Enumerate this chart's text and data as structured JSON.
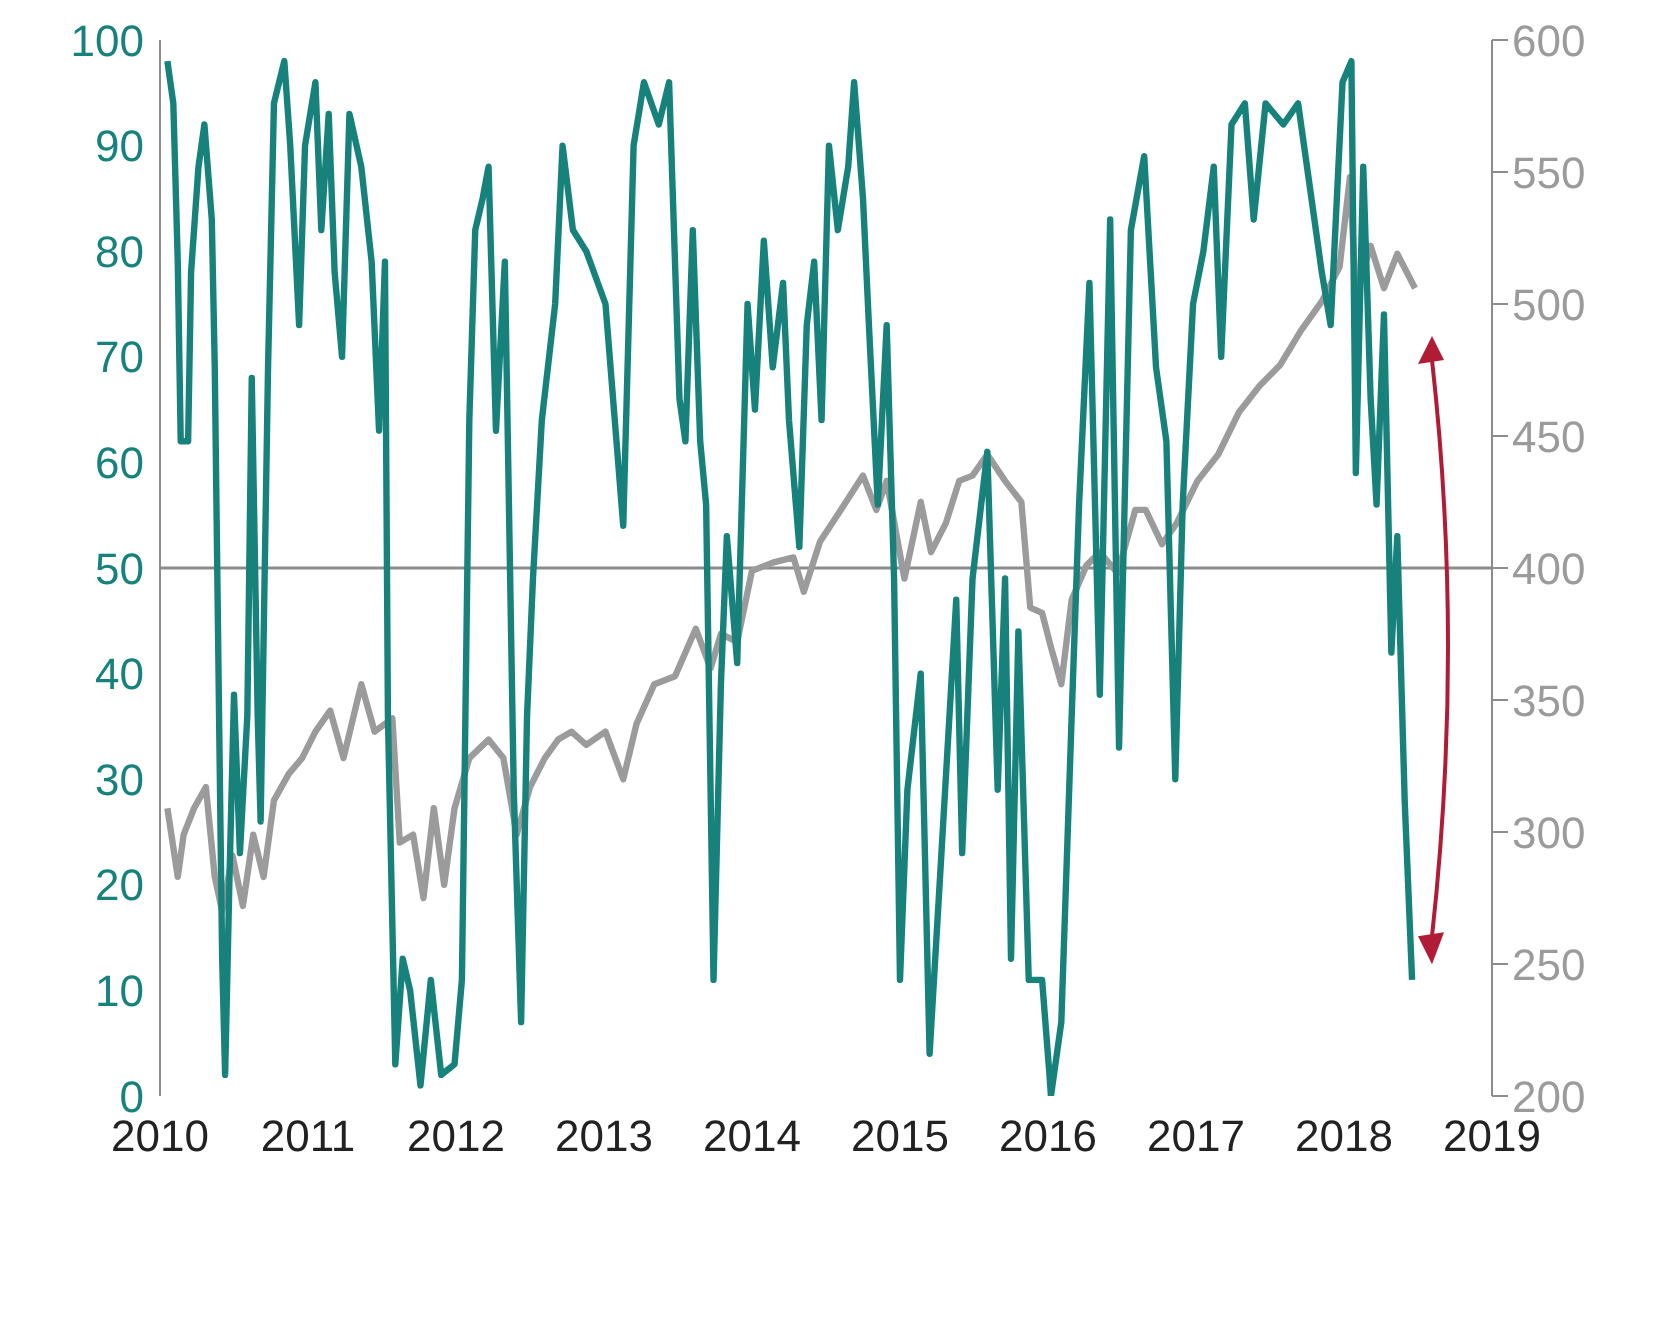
{
  "chart_data": {
    "type": "line",
    "xlim": [
      2010,
      2019
    ],
    "xticks": [
      2010,
      2011,
      2012,
      2013,
      2014,
      2015,
      2016,
      2017,
      2018,
      2019
    ],
    "ylim": [
      0,
      100
    ],
    "yticks": [
      0,
      10,
      20,
      30,
      40,
      50,
      60,
      70,
      80,
      90,
      100
    ],
    "y2lim": [
      200,
      600
    ],
    "y2ticks": [
      200,
      250,
      300,
      350,
      400,
      450,
      500,
      550,
      600
    ],
    "grid": false,
    "legend": false,
    "marker": "none",
    "line_style": "solid",
    "ref_lines": [
      {
        "axis": "y",
        "value": 50,
        "color": "#8c8c8c"
      }
    ],
    "series": [
      {
        "color": "#17827c",
        "x": [
          2010.05,
          2010.09,
          2010.12,
          2010.14,
          2010.19,
          2010.21,
          2010.26,
          2010.3,
          2010.35,
          2010.37,
          2010.4,
          2010.42,
          2010.44,
          2010.47,
          2010.5,
          2010.54,
          2010.59,
          2010.62,
          2010.66,
          2010.68,
          2010.73,
          2010.77,
          2010.84,
          2010.88,
          2010.94,
          2010.98,
          2011.05,
          2011.09,
          2011.14,
          2011.18,
          2011.23,
          2011.28,
          2011.36,
          2011.43,
          2011.48,
          2011.52,
          2011.54,
          2011.59,
          2011.64,
          2011.69,
          2011.76,
          2011.83,
          2011.9,
          2011.99,
          2012.04,
          2012.09,
          2012.13,
          2012.18,
          2012.22,
          2012.27,
          2012.33,
          2012.39,
          2012.44,
          2012.48,
          2012.52,
          2012.58,
          2012.67,
          2012.72,
          2012.79,
          2012.88,
          2013.01,
          2013.13,
          2013.2,
          2013.27,
          2013.37,
          2013.44,
          2013.51,
          2013.55,
          2013.6,
          2013.65,
          2013.69,
          2013.74,
          2013.79,
          2013.83,
          2013.9,
          2013.97,
          2014.02,
          2014.08,
          2014.14,
          2014.21,
          2014.25,
          2014.32,
          2014.37,
          2014.42,
          2014.47,
          2014.52,
          2014.58,
          2014.65,
          2014.69,
          2014.75,
          2014.79,
          2014.85,
          2014.91,
          2014.96,
          2015.0,
          2015.05,
          2015.14,
          2015.2,
          2015.28,
          2015.38,
          2015.42,
          2015.49,
          2015.59,
          2015.66,
          2015.71,
          2015.75,
          2015.8,
          2015.87,
          2015.96,
          2016.01,
          2016.02,
          2016.09,
          2016.16,
          2016.21,
          2016.28,
          2016.35,
          2016.42,
          2016.48,
          2016.56,
          2016.65,
          2016.73,
          2016.8,
          2016.86,
          2016.91,
          2016.98,
          2017.05,
          2017.12,
          2017.17,
          2017.24,
          2017.33,
          2017.39,
          2017.47,
          2017.59,
          2017.69,
          2017.75,
          2017.85,
          2017.91,
          2017.99,
          2018.05,
          2018.08,
          2018.13,
          2018.18,
          2018.22,
          2018.27,
          2018.32,
          2018.36,
          2018.41,
          2018.46
        ],
        "values": [
          98,
          94,
          79,
          62,
          62,
          78,
          88,
          92,
          83,
          69,
          35,
          13,
          2,
          21,
          38,
          23,
          36,
          68,
          36,
          26,
          69,
          94,
          98,
          90,
          73,
          90,
          96,
          82,
          93,
          78,
          70,
          93,
          88,
          79,
          63,
          79,
          36,
          3,
          13,
          10,
          1,
          11,
          2,
          3,
          11,
          64,
          82,
          85,
          88,
          63,
          79,
          29,
          7,
          36,
          49,
          64,
          75,
          90,
          82,
          80,
          75,
          54,
          90,
          96,
          92,
          96,
          66,
          62,
          82,
          62,
          56,
          11,
          39,
          53,
          41,
          75,
          65,
          81,
          69,
          77,
          64,
          52,
          73,
          79,
          64,
          90,
          82,
          88,
          96,
          85,
          73,
          56,
          73,
          49,
          11,
          29,
          40,
          4,
          23,
          47,
          23,
          49,
          61,
          29,
          49,
          13,
          44,
          11,
          11,
          2,
          0,
          7,
          36,
          56,
          77,
          38,
          83,
          33,
          82,
          89,
          69,
          62,
          30,
          56,
          75,
          80,
          88,
          70,
          92,
          94,
          83,
          94,
          92,
          94,
          88,
          78,
          73,
          96,
          98,
          59,
          88,
          66,
          56,
          74,
          42,
          53,
          28,
          11
        ]
      },
      {
        "color": "#9b9b9b",
        "axis": "y2",
        "x": [
          2010.05,
          2010.12,
          2010.16,
          2010.23,
          2010.31,
          2010.37,
          2010.42,
          2010.49,
          2010.56,
          2010.63,
          2010.7,
          2010.77,
          2010.87,
          2010.96,
          2011.05,
          2011.15,
          2011.24,
          2011.36,
          2011.45,
          2011.57,
          2011.62,
          2011.71,
          2011.78,
          2011.85,
          2011.92,
          2011.99,
          2012.09,
          2012.22,
          2012.32,
          2012.41,
          2012.5,
          2012.6,
          2012.69,
          2012.78,
          2012.88,
          2013.01,
          2013.13,
          2013.22,
          2013.34,
          2013.48,
          2013.62,
          2013.72,
          2013.79,
          2013.9,
          2014.0,
          2014.14,
          2014.28,
          2014.35,
          2014.46,
          2014.6,
          2014.75,
          2014.84,
          2014.91,
          2015.03,
          2015.14,
          2015.21,
          2015.31,
          2015.4,
          2015.49,
          2015.59,
          2015.71,
          2015.82,
          2015.88,
          2015.96,
          2016.02,
          2016.09,
          2016.16,
          2016.26,
          2016.35,
          2016.47,
          2016.59,
          2016.66,
          2016.77,
          2016.87,
          2017.01,
          2017.15,
          2017.29,
          2017.43,
          2017.57,
          2017.71,
          2017.85,
          2017.97,
          2018.04,
          2018.08,
          2018.18,
          2018.27,
          2018.36,
          2018.48
        ],
        "values": [
          309,
          283,
          299,
          309,
          317,
          283,
          270,
          291,
          272,
          299,
          283,
          312,
          322,
          328,
          338,
          346,
          328,
          356,
          338,
          343,
          296,
          299,
          275,
          309,
          280,
          309,
          328,
          335,
          328,
          299,
          317,
          328,
          335,
          338,
          333,
          338,
          320,
          341,
          356,
          359,
          377,
          362,
          375,
          372,
          399,
          402,
          404,
          391,
          410,
          422,
          435,
          422,
          433,
          396,
          425,
          406,
          417,
          433,
          435,
          443,
          433,
          425,
          385,
          383,
          370,
          356,
          388,
          401,
          406,
          398,
          422,
          422,
          409,
          417,
          433,
          443,
          459,
          469,
          477,
          490,
          501,
          514,
          548,
          503,
          522,
          506,
          519,
          506
        ]
      }
    ]
  }
}
